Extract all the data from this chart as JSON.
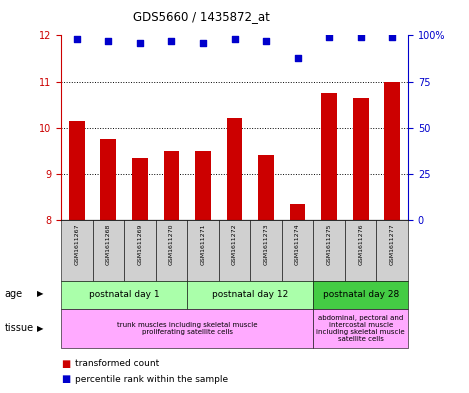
{
  "title": "GDS5660 / 1435872_at",
  "samples": [
    "GSM1611267",
    "GSM1611268",
    "GSM1611269",
    "GSM1611270",
    "GSM1611271",
    "GSM1611272",
    "GSM1611273",
    "GSM1611274",
    "GSM1611275",
    "GSM1611276",
    "GSM1611277"
  ],
  "transformed_count": [
    10.15,
    9.75,
    9.35,
    9.5,
    9.5,
    10.2,
    9.4,
    8.35,
    10.75,
    10.65,
    11.0
  ],
  "percentile_rank": [
    98,
    97,
    96,
    97,
    96,
    98,
    97,
    88,
    99,
    99,
    99
  ],
  "bar_color": "#cc0000",
  "dot_color": "#0000cc",
  "ylim_left": [
    8,
    12
  ],
  "ylim_right": [
    0,
    100
  ],
  "yticks_left": [
    8,
    9,
    10,
    11,
    12
  ],
  "yticks_right": [
    0,
    25,
    50,
    75,
    100
  ],
  "ytick_labels_right": [
    "0",
    "25",
    "50",
    "75",
    "100%"
  ],
  "left_axis_color": "#cc0000",
  "right_axis_color": "#0000cc",
  "plot_bg_color": "#ffffff",
  "sample_box_color": "#d0d0d0",
  "age_color_light": "#aaffaa",
  "age_color_dark": "#44cc44",
  "tissue_color": "#ffaaff",
  "age_boundaries": [
    0,
    4,
    8,
    11
  ],
  "age_labels": [
    "postnatal day 1",
    "postnatal day 12",
    "postnatal day 28"
  ],
  "tissue_boundaries": [
    0,
    8,
    11
  ],
  "tissue_label_left": "trunk muscles including skeletal muscle\nproliferating satellite cells",
  "tissue_label_right": "abdominal, pectoral and\nintercostal muscle\nincluding skeletal muscle\nsatellite cells"
}
